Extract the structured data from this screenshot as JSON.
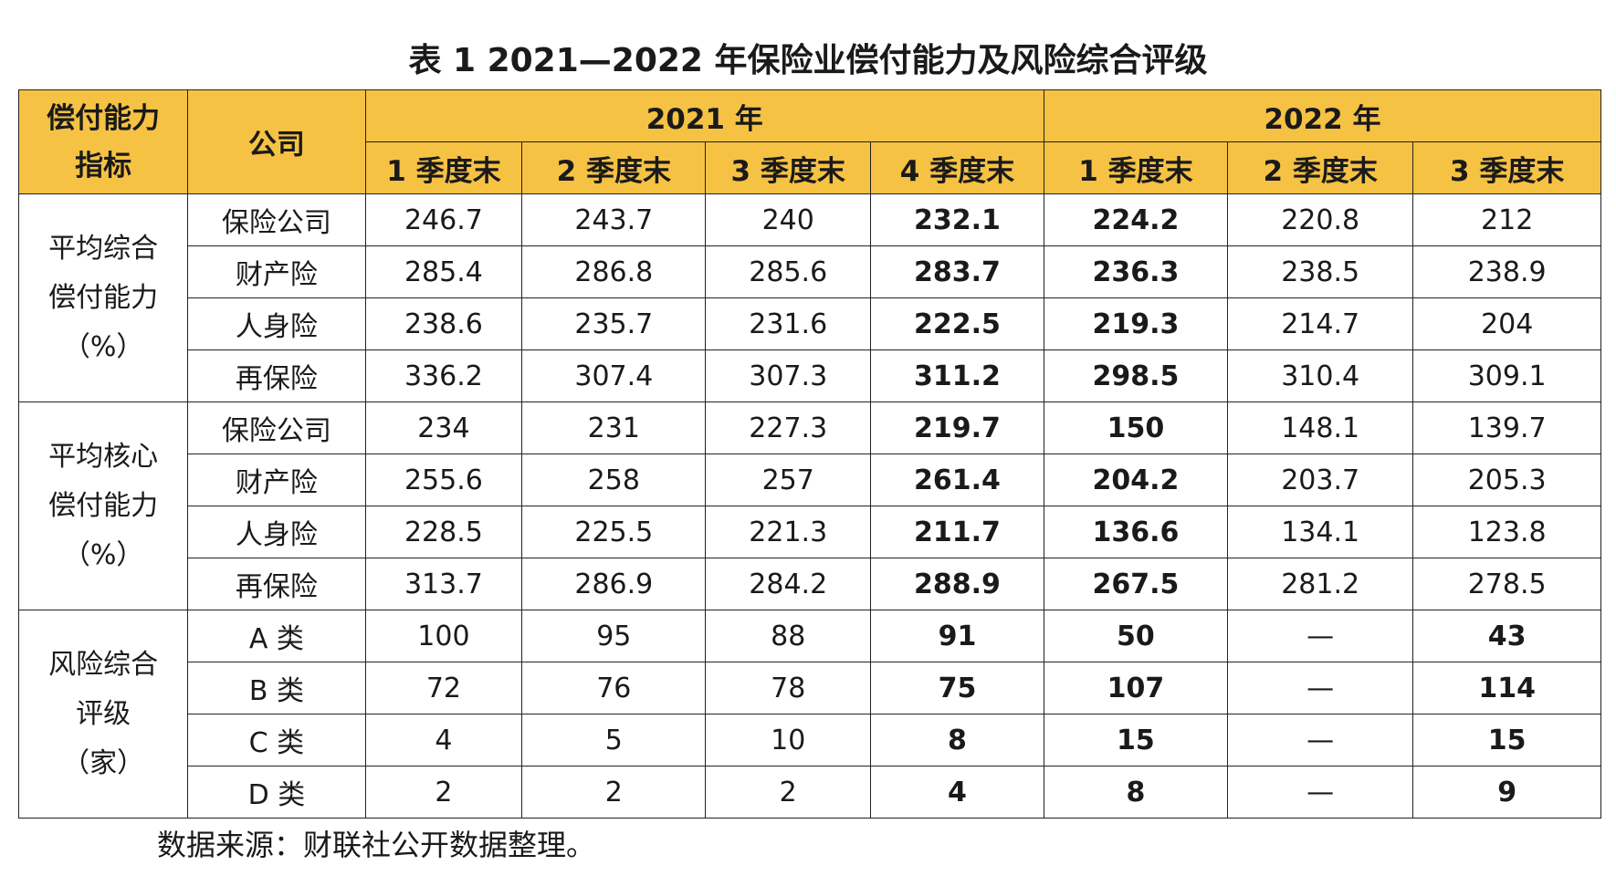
{
  "title": "表 1 2021—2022 年保险业偿付能力及风险综合评级",
  "header": {
    "metric_col": "偿付能力指标",
    "metric_col_line1": "偿付能力",
    "metric_col_line2": "指标",
    "company_col": "公司",
    "years": [
      "2021 年",
      "2022 年"
    ],
    "quarters_2021": [
      "1 季度末",
      "2 季度末",
      "3 季度末",
      "4 季度末"
    ],
    "quarters_2022": [
      "1 季度末",
      "2 季度末",
      "3 季度末"
    ]
  },
  "groups": [
    {
      "label_lines": [
        "平均综合",
        "偿付能力",
        "（%）"
      ],
      "rows": [
        {
          "company": "保险公司",
          "values": [
            "246.7",
            "243.7",
            "240",
            "232.1",
            "224.2",
            "220.8",
            "212"
          ],
          "bold": [
            false,
            false,
            false,
            true,
            true,
            false,
            false
          ]
        },
        {
          "company": "财产险",
          "values": [
            "285.4",
            "286.8",
            "285.6",
            "283.7",
            "236.3",
            "238.5",
            "238.9"
          ],
          "bold": [
            false,
            false,
            false,
            true,
            true,
            false,
            false
          ]
        },
        {
          "company": "人身险",
          "values": [
            "238.6",
            "235.7",
            "231.6",
            "222.5",
            "219.3",
            "214.7",
            "204"
          ],
          "bold": [
            false,
            false,
            false,
            true,
            true,
            false,
            false
          ]
        },
        {
          "company": "再保险",
          "values": [
            "336.2",
            "307.4",
            "307.3",
            "311.2",
            "298.5",
            "310.4",
            "309.1"
          ],
          "bold": [
            false,
            false,
            false,
            true,
            true,
            false,
            false
          ]
        }
      ]
    },
    {
      "label_lines": [
        "平均核心",
        "偿付能力",
        "（%）"
      ],
      "rows": [
        {
          "company": "保险公司",
          "values": [
            "234",
            "231",
            "227.3",
            "219.7",
            "150",
            "148.1",
            "139.7"
          ],
          "bold": [
            false,
            false,
            false,
            true,
            true,
            false,
            false
          ]
        },
        {
          "company": "财产险",
          "values": [
            "255.6",
            "258",
            "257",
            "261.4",
            "204.2",
            "203.7",
            "205.3"
          ],
          "bold": [
            false,
            false,
            false,
            true,
            true,
            false,
            false
          ]
        },
        {
          "company": "人身险",
          "values": [
            "228.5",
            "225.5",
            "221.3",
            "211.7",
            "136.6",
            "134.1",
            "123.8"
          ],
          "bold": [
            false,
            false,
            false,
            true,
            true,
            false,
            false
          ]
        },
        {
          "company": "再保险",
          "values": [
            "313.7",
            "286.9",
            "284.2",
            "288.9",
            "267.5",
            "281.2",
            "278.5"
          ],
          "bold": [
            false,
            false,
            false,
            true,
            true,
            false,
            false
          ]
        }
      ]
    },
    {
      "label_lines": [
        "风险综合",
        "评级",
        "（家）"
      ],
      "rows": [
        {
          "company": "A 类",
          "values": [
            "100",
            "95",
            "88",
            "91",
            "50",
            "—",
            "43"
          ],
          "bold": [
            false,
            false,
            false,
            true,
            true,
            false,
            true
          ]
        },
        {
          "company": "B 类",
          "values": [
            "72",
            "76",
            "78",
            "75",
            "107",
            "—",
            "114"
          ],
          "bold": [
            false,
            false,
            false,
            true,
            true,
            false,
            true
          ]
        },
        {
          "company": "C 类",
          "values": [
            "4",
            "5",
            "10",
            "8",
            "15",
            "—",
            "15"
          ],
          "bold": [
            false,
            false,
            false,
            true,
            true,
            false,
            true
          ]
        },
        {
          "company": "D 类",
          "values": [
            "2",
            "2",
            "2",
            "4",
            "8",
            "—",
            "9"
          ],
          "bold": [
            false,
            false,
            false,
            true,
            true,
            false,
            true
          ]
        }
      ]
    }
  ],
  "source": "数据来源：财联社公开数据整理。",
  "colors": {
    "header_bg": "#f6c244",
    "border": "#222222"
  }
}
